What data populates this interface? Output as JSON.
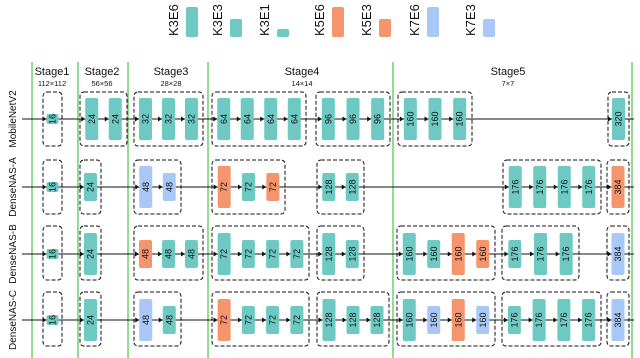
{
  "legend": [
    {
      "label": "K3E6",
      "color": "#6ec9c2",
      "kind": "k3e6"
    },
    {
      "label": "K3E3",
      "color": "#6ec9c2",
      "kind": "k3e3"
    },
    {
      "label": "K3E1",
      "color": "#6ec9c2",
      "kind": "k3e1"
    },
    {
      "label": "K5E6",
      "color": "#f4956d",
      "kind": "k5e6"
    },
    {
      "label": "K5E3",
      "color": "#f4956d",
      "kind": "k5e3"
    },
    {
      "label": "K7E6",
      "color": "#a9c8f5",
      "kind": "k7e6"
    },
    {
      "label": "K7E3",
      "color": "#a9c8f5",
      "kind": "k7e3"
    }
  ],
  "stages": [
    {
      "name": "Stage1",
      "res": "112×112"
    },
    {
      "name": "Stage2",
      "res": "56×56"
    },
    {
      "name": "Stage3",
      "res": "28×28"
    },
    {
      "name": "Stage4",
      "res": "14×14"
    },
    {
      "name": "Stage5",
      "res": "7×7"
    }
  ],
  "rows": [
    {
      "name": "MobileNetV2",
      "groups": [
        {
          "stage": 1,
          "blocks": [
            {
              "label": "16",
              "kind": "k3e1"
            }
          ]
        },
        {
          "stage": 2,
          "blocks": [
            {
              "label": "24",
              "kind": "k3e6"
            },
            {
              "label": "24",
              "kind": "k3e6"
            }
          ]
        },
        {
          "stage": 3,
          "blocks": [
            {
              "label": "32",
              "kind": "k3e6"
            },
            {
              "label": "32",
              "kind": "k3e6"
            },
            {
              "label": "32",
              "kind": "k3e6"
            }
          ]
        },
        {
          "stage": 4,
          "blocks": [
            {
              "label": "64",
              "kind": "k3e6"
            },
            {
              "label": "64",
              "kind": "k3e6"
            },
            {
              "label": "64",
              "kind": "k3e6"
            },
            {
              "label": "64",
              "kind": "k3e6"
            }
          ]
        },
        {
          "stage": 4,
          "blocks": [
            {
              "label": "96",
              "kind": "k3e6"
            },
            {
              "label": "96",
              "kind": "k3e6"
            },
            {
              "label": "96",
              "kind": "k3e6"
            }
          ]
        },
        {
          "stage": 5,
          "blocks": [
            {
              "label": "160",
              "kind": "k3e6"
            },
            {
              "label": "160",
              "kind": "k3e6"
            },
            {
              "label": "160",
              "kind": "k3e6"
            }
          ]
        },
        {
          "stage": 5,
          "blocks": [
            {
              "label": "320",
              "kind": "k3e6"
            }
          ]
        }
      ]
    },
    {
      "name": "DenseNAS-A",
      "groups": [
        {
          "stage": 1,
          "blocks": [
            {
              "label": "16",
              "kind": "k3e1"
            }
          ]
        },
        {
          "stage": 2,
          "blocks": [
            {
              "label": "24",
              "kind": "k3e3"
            }
          ]
        },
        {
          "stage": 3,
          "blocks": [
            {
              "label": "48",
              "kind": "k7e6"
            },
            {
              "label": "48",
              "kind": "k7e3"
            }
          ]
        },
        {
          "stage": 4,
          "blocks": [
            {
              "label": "72",
              "kind": "k5e6"
            },
            {
              "label": "72",
              "kind": "k3e3"
            },
            {
              "label": "72",
              "kind": "k5e3"
            }
          ]
        },
        {
          "stage": 4,
          "blocks": [
            {
              "label": "128",
              "kind": "k3e3"
            },
            {
              "label": "128",
              "kind": "k3e3"
            }
          ]
        },
        {
          "stage": 5,
          "blocks": [
            {
              "label": "176",
              "kind": "k3e6"
            },
            {
              "label": "176",
              "kind": "k3e6"
            },
            {
              "label": "176",
              "kind": "k3e6"
            },
            {
              "label": "176",
              "kind": "k3e6"
            }
          ]
        },
        {
          "stage": 5,
          "blocks": [
            {
              "label": "384",
              "kind": "k5e6"
            }
          ]
        }
      ]
    },
    {
      "name": "DenseNAS-B",
      "groups": [
        {
          "stage": 1,
          "blocks": [
            {
              "label": "16",
              "kind": "k3e1"
            }
          ]
        },
        {
          "stage": 2,
          "blocks": [
            {
              "label": "24",
              "kind": "k3e6"
            }
          ]
        },
        {
          "stage": 3,
          "blocks": [
            {
              "label": "48",
              "kind": "k5e3"
            },
            {
              "label": "48",
              "kind": "k3e3"
            },
            {
              "label": "48",
              "kind": "k3e3"
            }
          ]
        },
        {
          "stage": 4,
          "blocks": [
            {
              "label": "72",
              "kind": "k3e6"
            },
            {
              "label": "72",
              "kind": "k3e3"
            },
            {
              "label": "72",
              "kind": "k3e3"
            },
            {
              "label": "72",
              "kind": "k3e3"
            }
          ]
        },
        {
          "stage": 4,
          "blocks": [
            {
              "label": "128",
              "kind": "k3e6"
            },
            {
              "label": "128",
              "kind": "k3e3"
            }
          ]
        },
        {
          "stage": 5,
          "blocks": [
            {
              "label": "160",
              "kind": "k3e6"
            },
            {
              "label": "160",
              "kind": "k3e3"
            },
            {
              "label": "160",
              "kind": "k5e6"
            },
            {
              "label": "160",
              "kind": "k5e3"
            }
          ]
        },
        {
          "stage": 5,
          "blocks": [
            {
              "label": "176",
              "kind": "k3e3"
            },
            {
              "label": "176",
              "kind": "k3e6"
            },
            {
              "label": "176",
              "kind": "k3e6"
            }
          ]
        },
        {
          "stage": 5,
          "blocks": [
            {
              "label": "384",
              "kind": "k7e6"
            }
          ]
        }
      ]
    },
    {
      "name": "DenseNAS-C",
      "groups": [
        {
          "stage": 1,
          "blocks": [
            {
              "label": "16",
              "kind": "k3e1"
            }
          ]
        },
        {
          "stage": 2,
          "blocks": [
            {
              "label": "24",
              "kind": "k3e6"
            }
          ]
        },
        {
          "stage": 3,
          "blocks": [
            {
              "label": "48",
              "kind": "k7e6"
            },
            {
              "label": "48",
              "kind": "k3e3"
            }
          ]
        },
        {
          "stage": 4,
          "blocks": [
            {
              "label": "72",
              "kind": "k5e6"
            },
            {
              "label": "72",
              "kind": "k3e3"
            },
            {
              "label": "72",
              "kind": "k3e3"
            },
            {
              "label": "72",
              "kind": "k3e3"
            }
          ]
        },
        {
          "stage": 4,
          "blocks": [
            {
              "label": "128",
              "kind": "k3e6"
            },
            {
              "label": "128",
              "kind": "k3e3"
            },
            {
              "label": "128",
              "kind": "k3e3"
            }
          ]
        },
        {
          "stage": 5,
          "blocks": [
            {
              "label": "160",
              "kind": "k3e6"
            },
            {
              "label": "160",
              "kind": "k7e3"
            },
            {
              "label": "160",
              "kind": "k5e6"
            },
            {
              "label": "160",
              "kind": "k7e3"
            }
          ]
        },
        {
          "stage": 5,
          "blocks": [
            {
              "label": "176",
              "kind": "k3e3"
            },
            {
              "label": "176",
              "kind": "k3e6"
            },
            {
              "label": "176",
              "kind": "k3e6"
            },
            {
              "label": "176",
              "kind": "k3e6"
            }
          ]
        },
        {
          "stage": 5,
          "blocks": [
            {
              "label": "384",
              "kind": "k7e6"
            }
          ]
        }
      ]
    }
  ]
}
